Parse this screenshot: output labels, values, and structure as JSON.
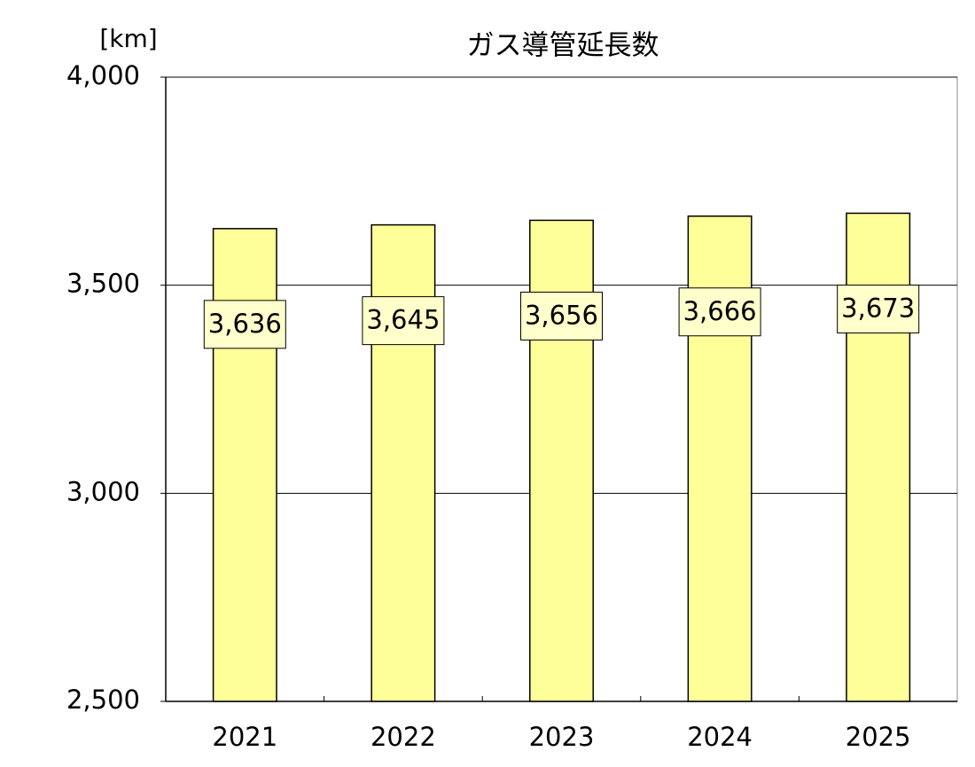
{
  "chart_data": {
    "type": "bar",
    "title": "ガス導管延長数",
    "y_axis_label": "[km]",
    "categories": [
      "2021",
      "2022",
      "2023",
      "2024",
      "2025"
    ],
    "values": [
      3636,
      3645,
      3656,
      3666,
      3673
    ],
    "value_labels": [
      "3,636",
      "3,645",
      "3,656",
      "3,666",
      "3,673"
    ],
    "color": "#ffff99",
    "ylim": [
      2500,
      4000
    ],
    "yticks": [
      {
        "value": 2500,
        "label": "2,500"
      },
      {
        "value": 3000,
        "label": "3,000"
      },
      {
        "value": 3500,
        "label": "3,500"
      },
      {
        "value": 4000,
        "label": "4,000"
      }
    ],
    "grid": true
  }
}
